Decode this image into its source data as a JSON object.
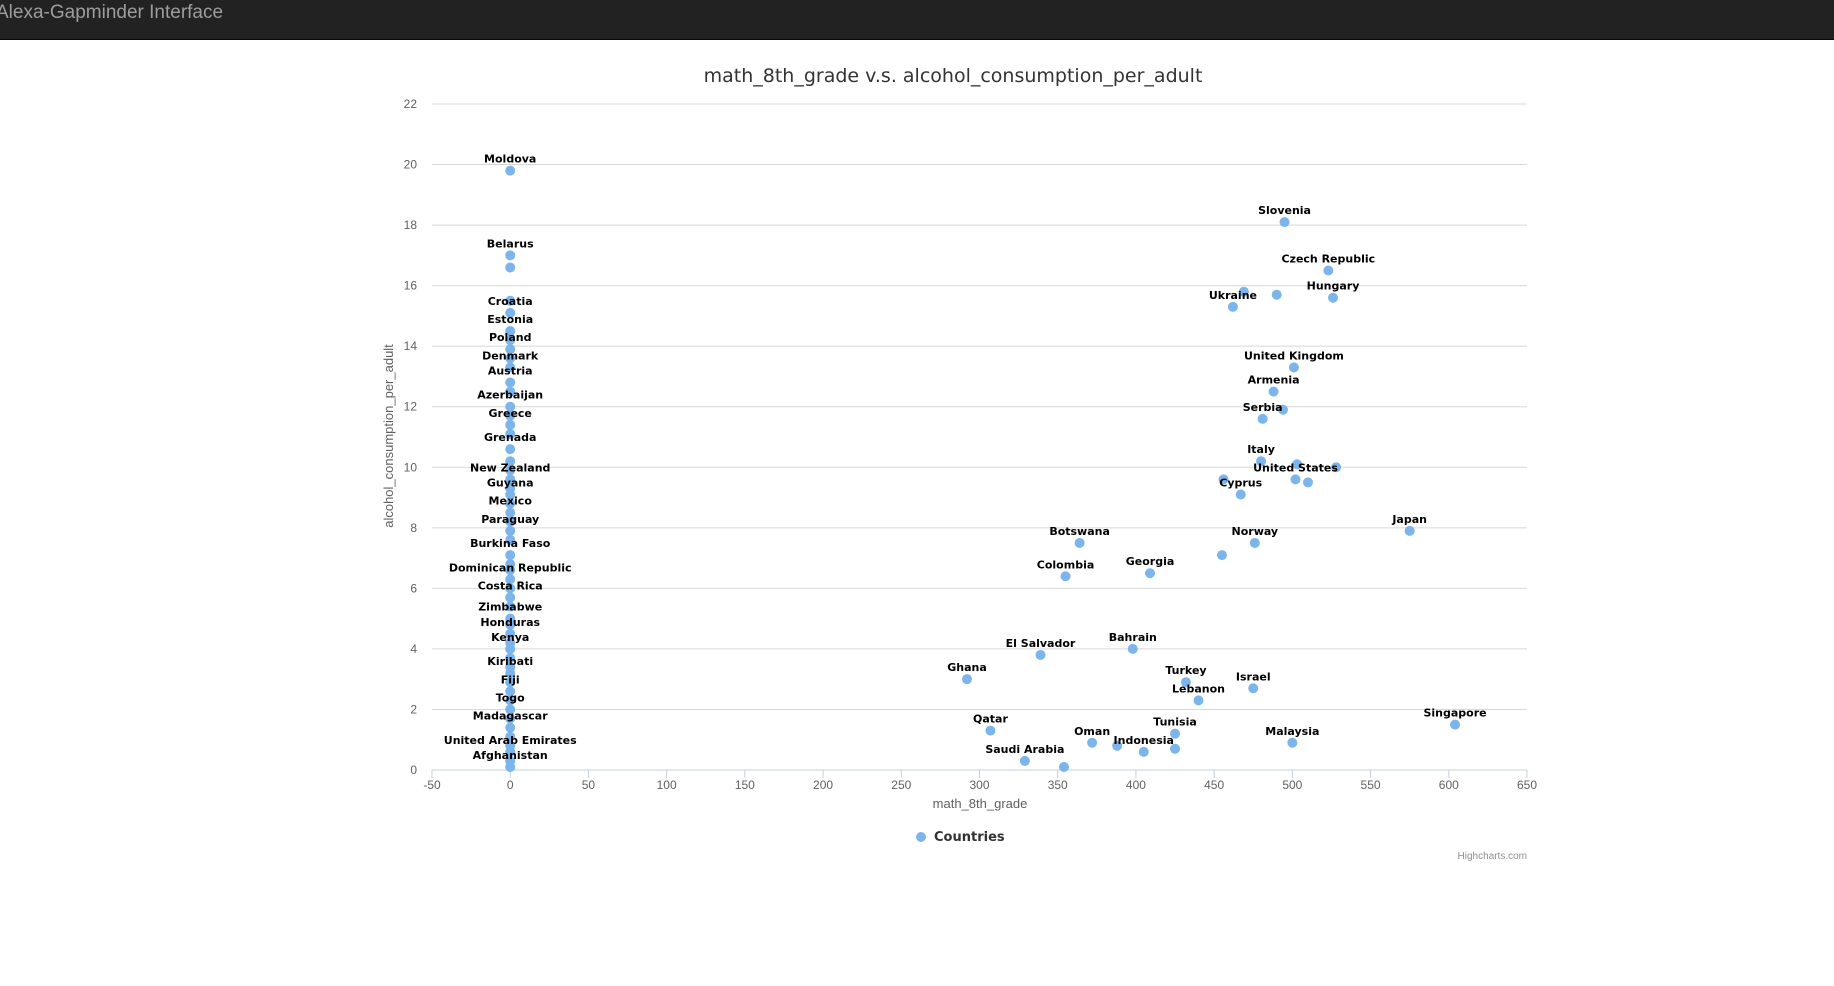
{
  "app": {
    "title": "Alexa-Gapminder Interface"
  },
  "chart_data": {
    "type": "scatter",
    "title": "math_8th_grade v.s. alcohol_consumption_per_adult",
    "xlabel": "math_8th_grade",
    "ylabel": "alcohol_consumption_per_adult",
    "xlim": [
      -50,
      650
    ],
    "ylim": [
      0,
      22
    ],
    "x_ticks": [
      -50,
      0,
      50,
      100,
      150,
      200,
      250,
      300,
      350,
      400,
      450,
      500,
      550,
      600,
      650
    ],
    "y_ticks": [
      0,
      2,
      4,
      6,
      8,
      10,
      12,
      14,
      16,
      18,
      20,
      22
    ],
    "grid": true,
    "legend": {
      "position": "bottom-center",
      "items": [
        "Countries"
      ]
    },
    "credits": "Highcharts.com",
    "series": [
      {
        "name": "Countries",
        "color": "#7cb5ec",
        "points": [
          {
            "x": 0,
            "y": 19.8,
            "label": "Moldova"
          },
          {
            "x": 0,
            "y": 17.0,
            "label": "Belarus"
          },
          {
            "x": 0,
            "y": 15.1,
            "label": "Croatia"
          },
          {
            "x": 0,
            "y": 14.5,
            "label": "Estonia"
          },
          {
            "x": 0,
            "y": 13.9,
            "label": "Poland"
          },
          {
            "x": 0,
            "y": 13.3,
            "label": "Denmark"
          },
          {
            "x": 0,
            "y": 12.8,
            "label": "Austria"
          },
          {
            "x": 0,
            "y": 12.0,
            "label": "Azerbaijan"
          },
          {
            "x": 0,
            "y": 11.4,
            "label": "Greece"
          },
          {
            "x": 0,
            "y": 10.6,
            "label": "Grenada"
          },
          {
            "x": 0,
            "y": 9.6,
            "label": "New Zealand"
          },
          {
            "x": 0,
            "y": 9.1,
            "label": "Guyana"
          },
          {
            "x": 0,
            "y": 8.5,
            "label": "Mexico"
          },
          {
            "x": 0,
            "y": 7.9,
            "label": "Paraguay"
          },
          {
            "x": 0,
            "y": 7.1,
            "label": "Burkina Faso"
          },
          {
            "x": 0,
            "y": 6.3,
            "label": "Dominican Republic"
          },
          {
            "x": 0,
            "y": 5.7,
            "label": "Costa Rica"
          },
          {
            "x": 0,
            "y": 5.0,
            "label": "Zimbabwe"
          },
          {
            "x": 0,
            "y": 4.5,
            "label": "Honduras"
          },
          {
            "x": 0,
            "y": 4.0,
            "label": "Kenya"
          },
          {
            "x": 0,
            "y": 3.2,
            "label": "Kiribati"
          },
          {
            "x": 0,
            "y": 2.6,
            "label": "Fiji"
          },
          {
            "x": 0,
            "y": 2.0,
            "label": "Togo"
          },
          {
            "x": 0,
            "y": 1.4,
            "label": "Madagascar"
          },
          {
            "x": 0,
            "y": 0.6,
            "label": "United Arab Emirates"
          },
          {
            "x": 0,
            "y": 0.1,
            "label": "Afghanistan"
          },
          {
            "x": 0,
            "y": 16.6,
            "label": ""
          },
          {
            "x": 0,
            "y": 15.5,
            "label": ""
          },
          {
            "x": 0,
            "y": 14.2,
            "label": ""
          },
          {
            "x": 0,
            "y": 13.6,
            "label": ""
          },
          {
            "x": 0,
            "y": 12.5,
            "label": ""
          },
          {
            "x": 0,
            "y": 11.7,
            "label": ""
          },
          {
            "x": 0,
            "y": 11.1,
            "label": ""
          },
          {
            "x": 0,
            "y": 10.2,
            "label": ""
          },
          {
            "x": 0,
            "y": 9.9,
            "label": ""
          },
          {
            "x": 0,
            "y": 9.3,
            "label": ""
          },
          {
            "x": 0,
            "y": 8.8,
            "label": ""
          },
          {
            "x": 0,
            "y": 8.2,
            "label": ""
          },
          {
            "x": 0,
            "y": 7.6,
            "label": ""
          },
          {
            "x": 0,
            "y": 6.8,
            "label": ""
          },
          {
            "x": 0,
            "y": 6.6,
            "label": ""
          },
          {
            "x": 0,
            "y": 6.0,
            "label": ""
          },
          {
            "x": 0,
            "y": 5.4,
            "label": ""
          },
          {
            "x": 0,
            "y": 4.8,
            "label": ""
          },
          {
            "x": 0,
            "y": 4.2,
            "label": ""
          },
          {
            "x": 0,
            "y": 3.7,
            "label": ""
          },
          {
            "x": 0,
            "y": 3.4,
            "label": ""
          },
          {
            "x": 0,
            "y": 2.9,
            "label": ""
          },
          {
            "x": 0,
            "y": 2.3,
            "label": ""
          },
          {
            "x": 0,
            "y": 1.7,
            "label": ""
          },
          {
            "x": 0,
            "y": 1.1,
            "label": ""
          },
          {
            "x": 0,
            "y": 0.8,
            "label": ""
          },
          {
            "x": 0,
            "y": 0.3,
            "label": ""
          },
          {
            "x": 495,
            "y": 18.1,
            "label": "Slovenia"
          },
          {
            "x": 523,
            "y": 16.5,
            "label": "Czech Republic"
          },
          {
            "x": 526,
            "y": 15.6,
            "label": "Hungary"
          },
          {
            "x": 462,
            "y": 15.3,
            "label": "Ukraine"
          },
          {
            "x": 469,
            "y": 15.8,
            "label": ""
          },
          {
            "x": 490,
            "y": 15.7,
            "label": ""
          },
          {
            "x": 501,
            "y": 13.3,
            "label": "United Kingdom"
          },
          {
            "x": 488,
            "y": 12.5,
            "label": "Armenia"
          },
          {
            "x": 481,
            "y": 11.6,
            "label": "Serbia"
          },
          {
            "x": 494,
            "y": 11.9,
            "label": ""
          },
          {
            "x": 480,
            "y": 10.2,
            "label": "Italy"
          },
          {
            "x": 502,
            "y": 9.6,
            "label": "United States"
          },
          {
            "x": 503,
            "y": 10.1,
            "label": ""
          },
          {
            "x": 528,
            "y": 10.0,
            "label": ""
          },
          {
            "x": 510,
            "y": 9.5,
            "label": ""
          },
          {
            "x": 456,
            "y": 9.6,
            "label": ""
          },
          {
            "x": 467,
            "y": 9.1,
            "label": "Cyprus"
          },
          {
            "x": 575,
            "y": 7.9,
            "label": "Japan"
          },
          {
            "x": 476,
            "y": 7.5,
            "label": "Norway"
          },
          {
            "x": 455,
            "y": 7.1,
            "label": ""
          },
          {
            "x": 364,
            "y": 7.5,
            "label": "Botswana"
          },
          {
            "x": 409,
            "y": 6.5,
            "label": "Georgia"
          },
          {
            "x": 355,
            "y": 6.4,
            "label": "Colombia"
          },
          {
            "x": 339,
            "y": 3.8,
            "label": "El Salvador"
          },
          {
            "x": 398,
            "y": 4.0,
            "label": "Bahrain"
          },
          {
            "x": 292,
            "y": 3.0,
            "label": "Ghana"
          },
          {
            "x": 432,
            "y": 2.9,
            "label": "Turkey"
          },
          {
            "x": 475,
            "y": 2.7,
            "label": "Israel"
          },
          {
            "x": 440,
            "y": 2.3,
            "label": "Lebanon"
          },
          {
            "x": 604,
            "y": 1.5,
            "label": "Singapore"
          },
          {
            "x": 307,
            "y": 1.3,
            "label": "Qatar"
          },
          {
            "x": 425,
            "y": 1.2,
            "label": "Tunisia"
          },
          {
            "x": 372,
            "y": 0.9,
            "label": "Oman"
          },
          {
            "x": 388,
            "y": 0.8,
            "label": ""
          },
          {
            "x": 405,
            "y": 0.6,
            "label": "Indonesia"
          },
          {
            "x": 425,
            "y": 0.7,
            "label": ""
          },
          {
            "x": 500,
            "y": 0.9,
            "label": "Malaysia"
          },
          {
            "x": 329,
            "y": 0.3,
            "label": "Saudi Arabia"
          },
          {
            "x": 354,
            "y": 0.1,
            "label": ""
          }
        ]
      }
    ]
  }
}
